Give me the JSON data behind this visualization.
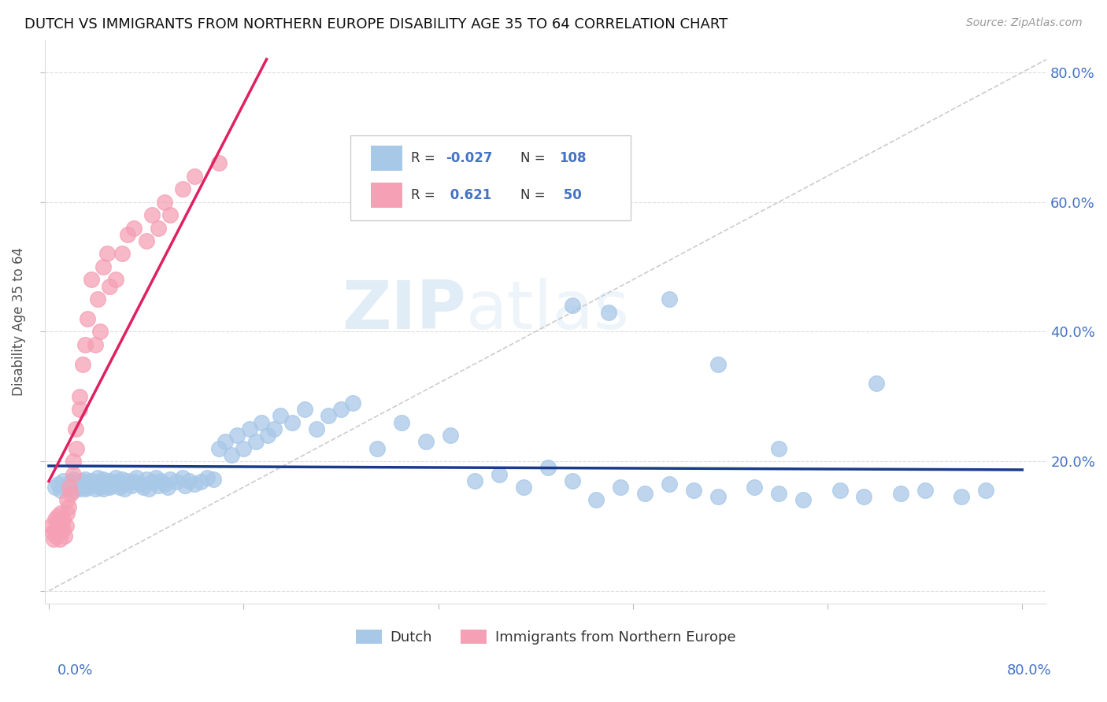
{
  "title": "DUTCH VS IMMIGRANTS FROM NORTHERN EUROPE DISABILITY AGE 35 TO 64 CORRELATION CHART",
  "source": "Source: ZipAtlas.com",
  "ylabel": "Disability Age 35 to 64",
  "color_dutch": "#a8c8e8",
  "color_dutch_line": "#1a3a8a",
  "color_immig": "#f5a0b5",
  "color_immig_line": "#e02060",
  "watermark_zip": "ZIP",
  "watermark_atlas": "atlas",
  "dutch_x": [
    0.005,
    0.008,
    0.01,
    0.012,
    0.015,
    0.015,
    0.018,
    0.02,
    0.02,
    0.022,
    0.025,
    0.025,
    0.027,
    0.028,
    0.03,
    0.03,
    0.03,
    0.032,
    0.033,
    0.035,
    0.035,
    0.038,
    0.04,
    0.04,
    0.042,
    0.043,
    0.045,
    0.045,
    0.048,
    0.05,
    0.05,
    0.052,
    0.055,
    0.055,
    0.058,
    0.06,
    0.06,
    0.062,
    0.065,
    0.068,
    0.07,
    0.072,
    0.075,
    0.078,
    0.08,
    0.082,
    0.085,
    0.088,
    0.09,
    0.092,
    0.095,
    0.098,
    0.1,
    0.105,
    0.11,
    0.112,
    0.115,
    0.12,
    0.125,
    0.13,
    0.135,
    0.14,
    0.145,
    0.15,
    0.155,
    0.16,
    0.165,
    0.17,
    0.175,
    0.18,
    0.185,
    0.19,
    0.2,
    0.21,
    0.22,
    0.23,
    0.24,
    0.25,
    0.27,
    0.29,
    0.31,
    0.33,
    0.35,
    0.37,
    0.39,
    0.41,
    0.43,
    0.45,
    0.47,
    0.49,
    0.51,
    0.53,
    0.55,
    0.58,
    0.6,
    0.62,
    0.65,
    0.67,
    0.7,
    0.72,
    0.75,
    0.77,
    0.46,
    0.51,
    0.55,
    0.43,
    0.6,
    0.68
  ],
  "dutch_y": [
    0.16,
    0.165,
    0.155,
    0.17,
    0.158,
    0.162,
    0.168,
    0.155,
    0.172,
    0.16,
    0.165,
    0.158,
    0.17,
    0.162,
    0.158,
    0.165,
    0.172,
    0.16,
    0.168,
    0.162,
    0.17,
    0.158,
    0.165,
    0.175,
    0.16,
    0.168,
    0.158,
    0.172,
    0.165,
    0.16,
    0.17,
    0.162,
    0.168,
    0.175,
    0.16,
    0.165,
    0.172,
    0.158,
    0.17,
    0.162,
    0.168,
    0.175,
    0.165,
    0.16,
    0.172,
    0.158,
    0.168,
    0.175,
    0.162,
    0.17,
    0.165,
    0.16,
    0.172,
    0.168,
    0.175,
    0.162,
    0.17,
    0.165,
    0.168,
    0.175,
    0.172,
    0.22,
    0.23,
    0.21,
    0.24,
    0.22,
    0.25,
    0.23,
    0.26,
    0.24,
    0.25,
    0.27,
    0.26,
    0.28,
    0.25,
    0.27,
    0.28,
    0.29,
    0.22,
    0.26,
    0.23,
    0.24,
    0.17,
    0.18,
    0.16,
    0.19,
    0.17,
    0.14,
    0.16,
    0.15,
    0.165,
    0.155,
    0.145,
    0.16,
    0.15,
    0.14,
    0.155,
    0.145,
    0.15,
    0.155,
    0.145,
    0.155,
    0.43,
    0.45,
    0.35,
    0.44,
    0.22,
    0.32
  ],
  "immig_x": [
    0.002,
    0.003,
    0.004,
    0.005,
    0.005,
    0.006,
    0.007,
    0.007,
    0.008,
    0.008,
    0.009,
    0.01,
    0.01,
    0.012,
    0.012,
    0.013,
    0.014,
    0.015,
    0.015,
    0.016,
    0.017,
    0.018,
    0.02,
    0.02,
    0.022,
    0.023,
    0.025,
    0.025,
    0.028,
    0.03,
    0.032,
    0.035,
    0.038,
    0.04,
    0.042,
    0.045,
    0.048,
    0.05,
    0.055,
    0.06,
    0.065,
    0.07,
    0.08,
    0.085,
    0.09,
    0.095,
    0.1,
    0.11,
    0.12,
    0.14
  ],
  "immig_y": [
    0.1,
    0.09,
    0.08,
    0.11,
    0.095,
    0.085,
    0.1,
    0.115,
    0.09,
    0.105,
    0.08,
    0.1,
    0.12,
    0.11,
    0.095,
    0.085,
    0.1,
    0.14,
    0.12,
    0.13,
    0.16,
    0.15,
    0.2,
    0.18,
    0.25,
    0.22,
    0.3,
    0.28,
    0.35,
    0.38,
    0.42,
    0.48,
    0.38,
    0.45,
    0.4,
    0.5,
    0.52,
    0.47,
    0.48,
    0.52,
    0.55,
    0.56,
    0.54,
    0.58,
    0.56,
    0.6,
    0.58,
    0.62,
    0.64,
    0.66
  ],
  "xmin": 0.0,
  "xmax": 0.8,
  "ymin": -0.02,
  "ymax": 0.85
}
